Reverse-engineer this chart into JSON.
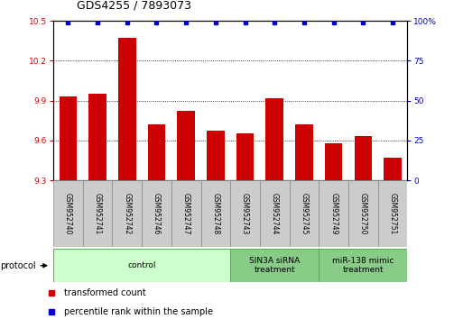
{
  "title": "GDS4255 / 7893073",
  "samples": [
    "GSM952740",
    "GSM952741",
    "GSM952742",
    "GSM952746",
    "GSM952747",
    "GSM952748",
    "GSM952743",
    "GSM952744",
    "GSM952745",
    "GSM952749",
    "GSM952750",
    "GSM952751"
  ],
  "bar_values": [
    9.93,
    9.95,
    10.37,
    9.72,
    9.82,
    9.67,
    9.65,
    9.92,
    9.72,
    9.58,
    9.63,
    9.47
  ],
  "percentile_values": [
    99,
    99,
    99,
    99,
    99,
    99,
    99,
    99,
    99,
    99,
    99,
    99
  ],
  "bar_color": "#cc0000",
  "dot_color": "#0000cc",
  "ylim_left": [
    9.3,
    10.5
  ],
  "ylim_right": [
    0,
    100
  ],
  "yticks_left": [
    9.3,
    9.6,
    9.9,
    10.2,
    10.5
  ],
  "yticks_right": [
    0,
    25,
    50,
    75,
    100
  ],
  "group_ranges": [
    {
      "start": 0,
      "end": 5,
      "label": "control",
      "color": "#ccffcc"
    },
    {
      "start": 6,
      "end": 8,
      "label": "SIN3A siRNA\ntreatment",
      "color": "#88cc88"
    },
    {
      "start": 9,
      "end": 11,
      "label": "miR-138 mimic\ntreatment",
      "color": "#88cc88"
    }
  ],
  "legend_items": [
    {
      "color": "#cc0000",
      "label": "transformed count"
    },
    {
      "color": "#0000cc",
      "label": "percentile rank within the sample"
    }
  ],
  "bar_width": 0.6,
  "title_fontsize": 9,
  "tick_fontsize": 6.5,
  "sample_fontsize": 5.5,
  "group_fontsize": 6.5,
  "legend_fontsize": 7,
  "protocol_fontsize": 7
}
